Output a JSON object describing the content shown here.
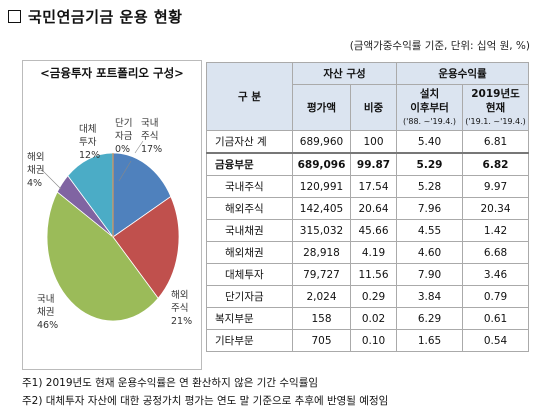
{
  "title": "국민연금기금 운용 현황",
  "unit_note": "(금액가중수익률 기준, 단위: 십억 원, %)",
  "chart": {
    "title": "<금융투자 포트폴리오 구성>",
    "labels": {
      "domestic_stock": [
        "국내",
        "주식",
        "17%"
      ],
      "overseas_stock": [
        "해외",
        "주식",
        "21%"
      ],
      "domestic_bond": [
        "국내",
        "채권",
        "46%"
      ],
      "overseas_bond": [
        "해외",
        "채권",
        "4%"
      ],
      "alternative": [
        "대체",
        "투자",
        "12%"
      ],
      "short_term": [
        "단기",
        "자금",
        "0%"
      ]
    }
  },
  "chart_data": {
    "type": "pie",
    "title": "<금융투자 포트폴리오 구성>",
    "categories": [
      "국내주식",
      "해외주식",
      "국내채권",
      "해외채권",
      "대체투자",
      "단기자금"
    ],
    "values": [
      17,
      21,
      46,
      4,
      12,
      0
    ],
    "colors": [
      "#4f81bd",
      "#c0504d",
      "#9bbb59",
      "#8064a2",
      "#4bacc6",
      "#f79646"
    ]
  },
  "table": {
    "header": {
      "category": "구 분",
      "asset_group": "자산 구성",
      "return_group": "운용수익률",
      "amount": "평가액",
      "weight": "비중",
      "since_inception": [
        "설치",
        "이후부터"
      ],
      "since_inception_period": "('88. ~'19.4.)",
      "ytd": [
        "2019년도",
        "현재"
      ],
      "ytd_period": "('19.1. ~'19.4.)"
    },
    "rows": [
      {
        "name": "기금자산 계",
        "amount": "689,960",
        "weight": "100",
        "r1": "5.40",
        "r2": "6.81"
      },
      {
        "name": "금융부문",
        "amount": "689,096",
        "weight": "99.87",
        "r1": "5.29",
        "r2": "6.82"
      },
      {
        "name": "국내주식",
        "amount": "120,991",
        "weight": "17.54",
        "r1": "5.28",
        "r2": "9.97"
      },
      {
        "name": "해외주식",
        "amount": "142,405",
        "weight": "20.64",
        "r1": "7.96",
        "r2": "20.34"
      },
      {
        "name": "국내채권",
        "amount": "315,032",
        "weight": "45.66",
        "r1": "4.55",
        "r2": "1.42"
      },
      {
        "name": "해외채권",
        "amount": "28,918",
        "weight": "4.19",
        "r1": "4.60",
        "r2": "6.68"
      },
      {
        "name": "대체투자",
        "amount": "79,727",
        "weight": "11.56",
        "r1": "7.90",
        "r2": "3.46"
      },
      {
        "name": "단기자금",
        "amount": "2,024",
        "weight": "0.29",
        "r1": "3.84",
        "r2": "0.79"
      },
      {
        "name": "복지부문",
        "amount": "158",
        "weight": "0.02",
        "r1": "6.29",
        "r2": "0.61"
      },
      {
        "name": "기타부문",
        "amount": "705",
        "weight": "0.10",
        "r1": "1.65",
        "r2": "0.54"
      }
    ]
  },
  "notes": [
    "주1) 2019년도 현재 운용수익률은 연 환산하지 않은 기간 수익률임",
    "주2) 대체투자 자산에 대한 공정가치 평가는 연도 말 기준으로 추후에 반영될 예정임"
  ]
}
